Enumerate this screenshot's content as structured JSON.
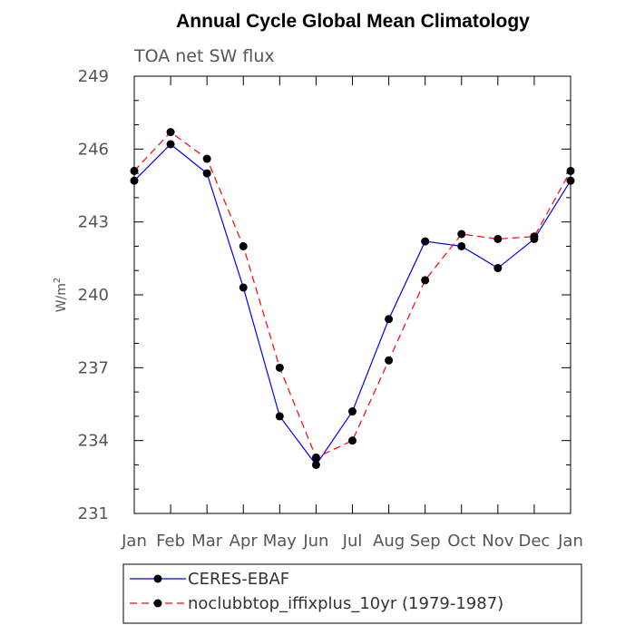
{
  "chart_data": {
    "type": "line",
    "title": "Annual Cycle Global Mean Climatology",
    "subtitle": "TOA net SW flux",
    "ylabel": "W/m",
    "ylabel_sup": "2",
    "categories": [
      "Jan",
      "Feb",
      "Mar",
      "Apr",
      "May",
      "Jun",
      "Jul",
      "Aug",
      "Sep",
      "Oct",
      "Nov",
      "Dec",
      "Jan"
    ],
    "ylim": [
      231,
      249
    ],
    "yticks": [
      231,
      234,
      237,
      240,
      243,
      246,
      249
    ],
    "grid": false,
    "legend_position": "bottom",
    "series": [
      {
        "name": "CERES-EBAF",
        "color": "#0000ff",
        "dash": "solid",
        "marker": "filled-circle",
        "values": [
          244.7,
          246.2,
          245.0,
          240.3,
          235.0,
          233.0,
          235.2,
          239.0,
          242.2,
          242.0,
          241.1,
          242.3,
          244.7
        ]
      },
      {
        "name": "noclubbtop_iffixplus_10yr (1979-1987)",
        "color": "#ff0000",
        "dash": "dashed",
        "marker": "filled-circle",
        "values": [
          245.1,
          246.7,
          245.6,
          242.0,
          237.0,
          233.3,
          234.0,
          237.3,
          240.6,
          242.5,
          242.3,
          242.4,
          245.1
        ]
      }
    ]
  }
}
